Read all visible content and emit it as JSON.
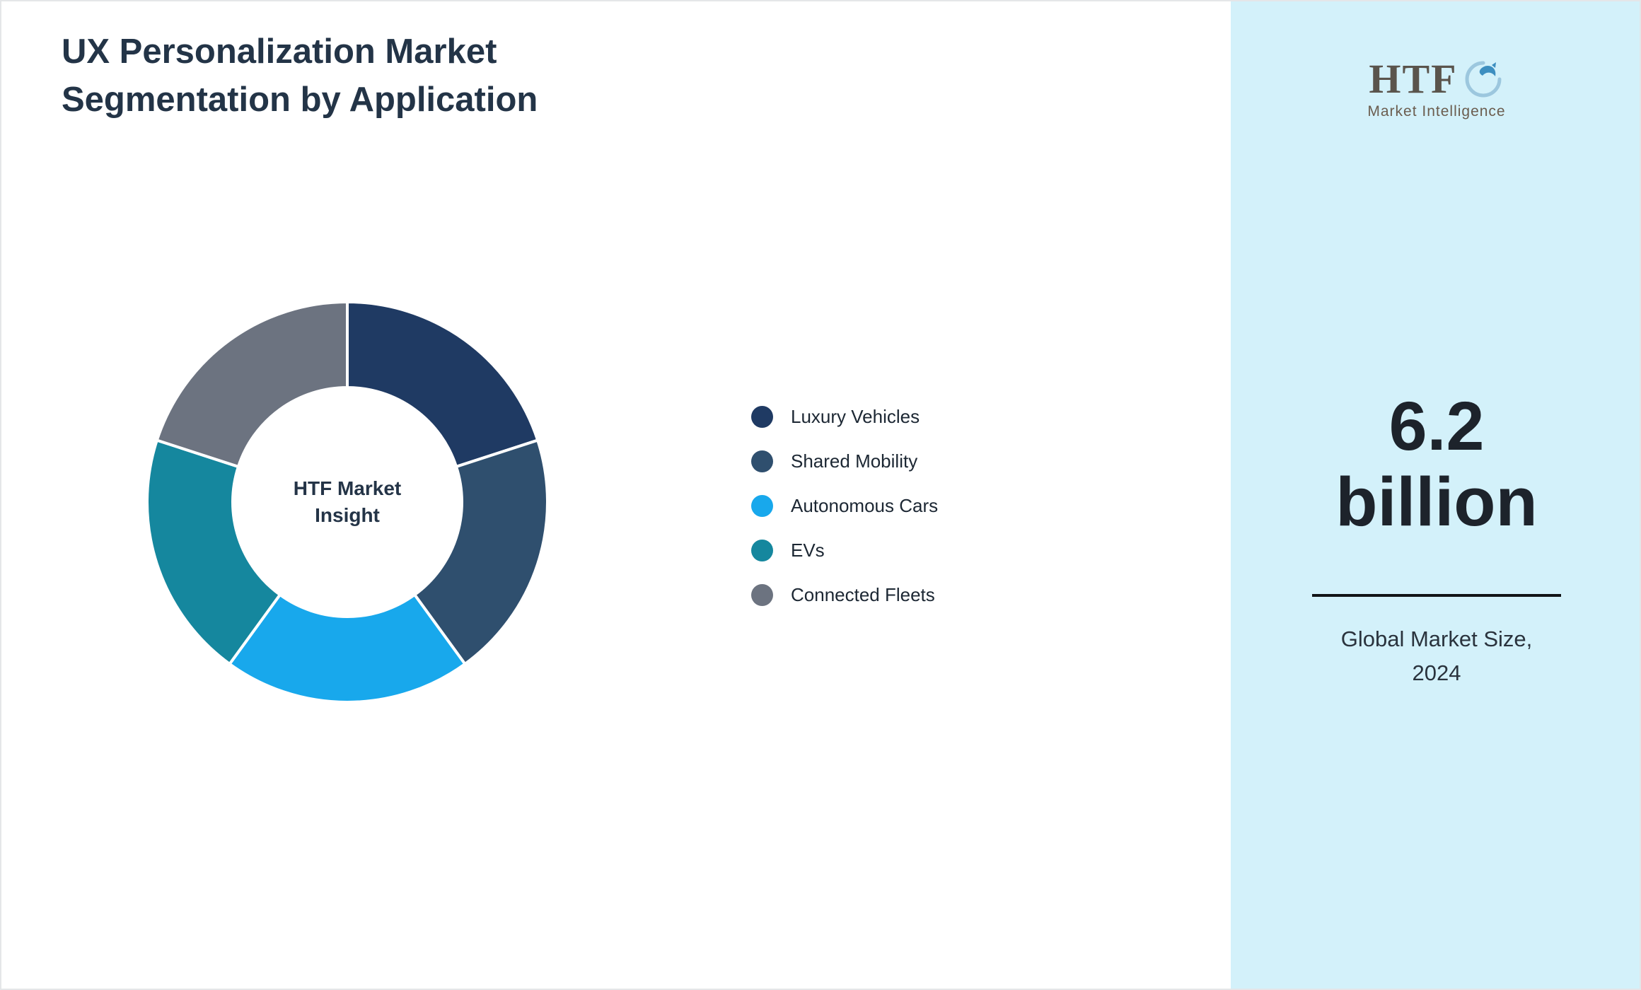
{
  "page": {
    "title_line1": "UX Personalization Market",
    "title_line2": "Segmentation by Application"
  },
  "chart_data": {
    "type": "pie",
    "subtype": "donut",
    "title": "UX Personalization Market Segmentation by Application",
    "center_label": "HTF Market Insight",
    "categories": [
      "Luxury Vehicles",
      "Shared Mobility",
      "Autonomous Cars",
      "EVs",
      "Connected Fleets"
    ],
    "values": [
      20,
      20,
      20,
      20,
      20
    ],
    "colors": [
      "#1f3a63",
      "#2f4f6e",
      "#18a8ec",
      "#15879e",
      "#6c7380"
    ],
    "legend_position": "right",
    "start_angle_deg": 0,
    "direction": "clockwise"
  },
  "sidebar": {
    "logo_text": "HTF",
    "logo_subtext": "Market Intelligence",
    "stat_value": "6.2",
    "stat_unit": "billion",
    "caption": "Global Market Size, 2024",
    "background_color": "#d3f1fa"
  }
}
